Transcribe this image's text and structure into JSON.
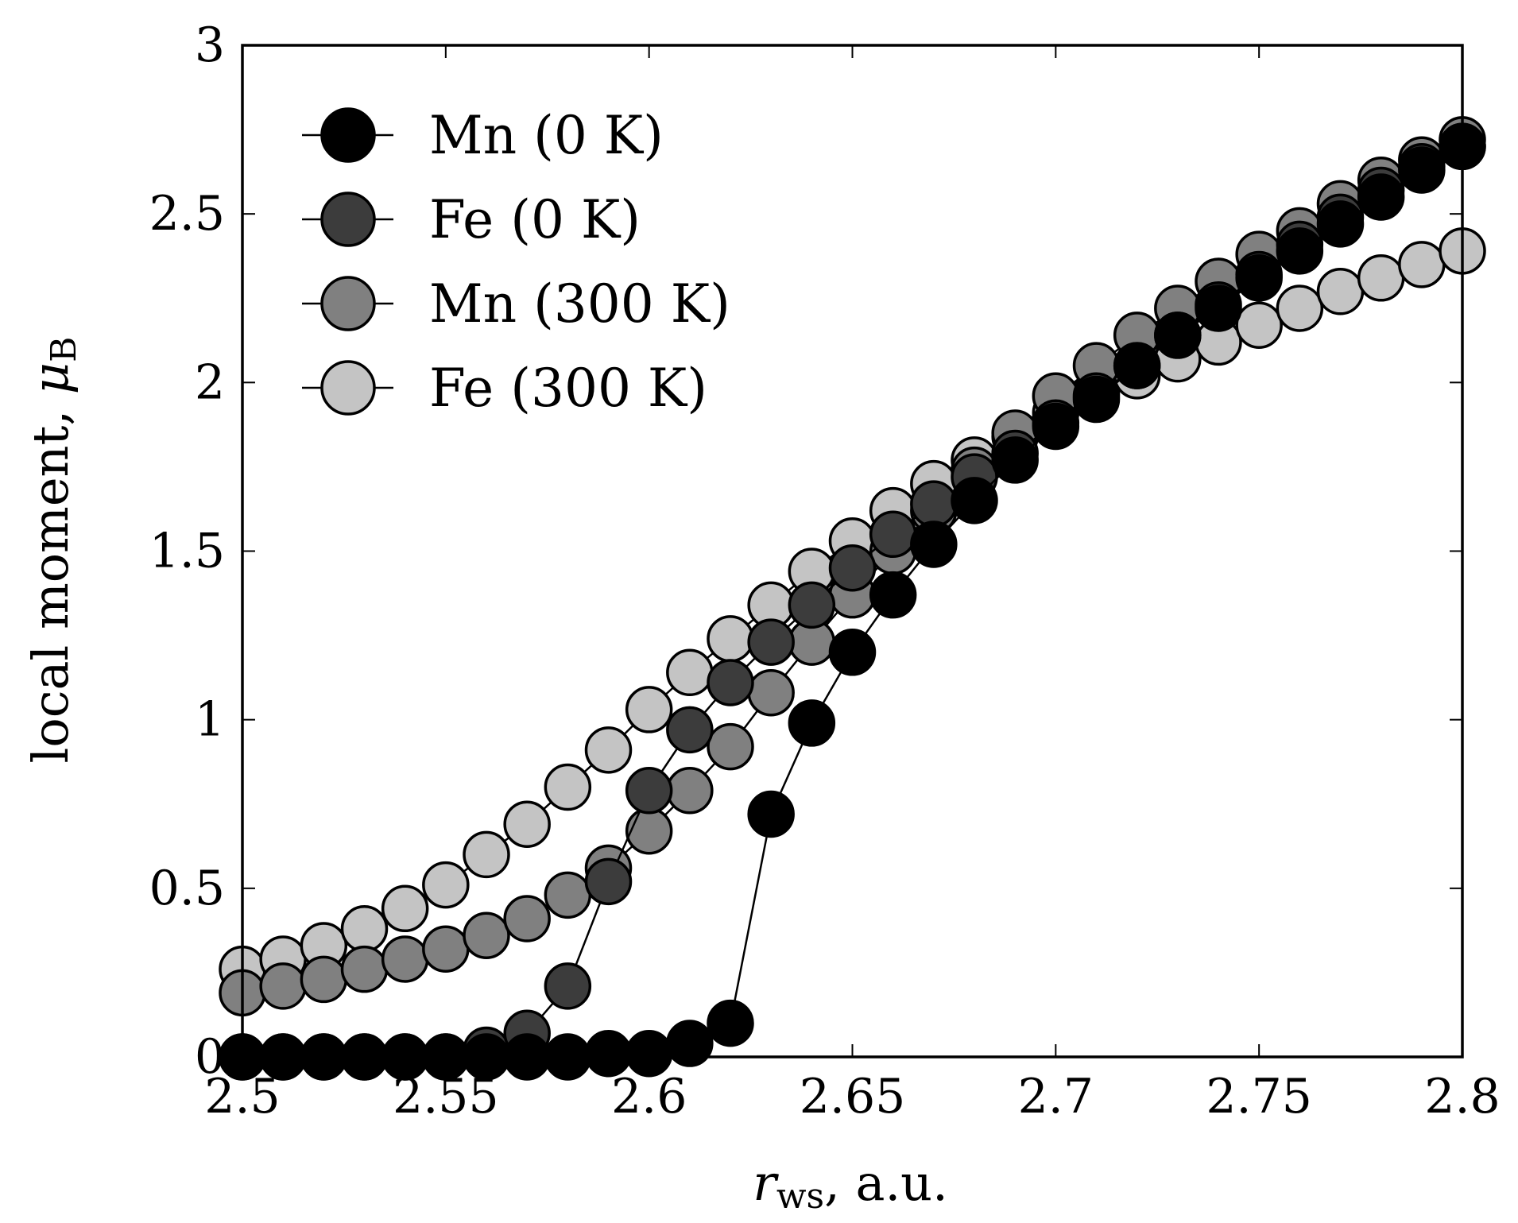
{
  "chart_data": {
    "type": "line",
    "title": "",
    "xlabel": {
      "main": "r",
      "sub": "ws",
      "suffix": ", a.u."
    },
    "ylabel": {
      "main": "local moment, ",
      "mu": "μ",
      "sub": "B"
    },
    "xlim": [
      2.5,
      2.8
    ],
    "ylim": [
      0,
      3
    ],
    "xticks": [
      2.5,
      2.55,
      2.6,
      2.65,
      2.7,
      2.75,
      2.8
    ],
    "xtick_labels": [
      "2.5",
      "2.55",
      "2.6",
      "2.65",
      "2.7",
      "2.75",
      "2.8"
    ],
    "yticks": [
      0,
      0.5,
      1,
      1.5,
      2,
      2.5,
      3
    ],
    "ytick_labels": [
      "0",
      "0.5",
      "1",
      "1.5",
      "2",
      "2.5",
      "3"
    ],
    "grid": false,
    "legend_position": "top-left",
    "x": [
      2.5,
      2.51,
      2.52,
      2.53,
      2.54,
      2.55,
      2.56,
      2.57,
      2.58,
      2.59,
      2.6,
      2.61,
      2.62,
      2.63,
      2.64,
      2.65,
      2.66,
      2.67,
      2.68,
      2.69,
      2.7,
      2.71,
      2.72,
      2.73,
      2.74,
      2.75,
      2.76,
      2.77,
      2.78,
      2.79,
      2.8
    ],
    "series": [
      {
        "name": "Mn (0 K)",
        "color": "#000000",
        "values": [
          0,
          0,
          0,
          0,
          0,
          0,
          0,
          0,
          0,
          0.01,
          0.01,
          0.04,
          0.1,
          0.72,
          0.99,
          1.2,
          1.37,
          1.52,
          1.65,
          1.77,
          1.87,
          1.95,
          2.05,
          2.14,
          2.22,
          2.31,
          2.39,
          2.47,
          2.55,
          2.63,
          2.7
        ]
      },
      {
        "name": "Fe (0 K)",
        "color": "#3c3c3c",
        "values": [
          0,
          0,
          0,
          0,
          0,
          0,
          0.02,
          0.07,
          0.21,
          0.52,
          0.79,
          0.97,
          1.11,
          1.23,
          1.34,
          1.45,
          1.55,
          1.64,
          1.72,
          1.79,
          1.88,
          1.96,
          2.05,
          2.14,
          2.23,
          2.32,
          2.41,
          2.49,
          2.57,
          2.64,
          2.7
        ]
      },
      {
        "name": "Mn (300 K)",
        "color": "#808080",
        "values": [
          0.19,
          0.21,
          0.23,
          0.26,
          0.29,
          0.32,
          0.36,
          0.41,
          0.48,
          0.56,
          0.67,
          0.79,
          0.92,
          1.08,
          1.23,
          1.37,
          1.5,
          1.62,
          1.74,
          1.85,
          1.96,
          2.05,
          2.14,
          2.22,
          2.3,
          2.38,
          2.45,
          2.53,
          2.6,
          2.66,
          2.72
        ]
      },
      {
        "name": "Fe (300 K)",
        "color": "#c4c4c4",
        "values": [
          0.26,
          0.29,
          0.33,
          0.38,
          0.44,
          0.51,
          0.6,
          0.69,
          0.8,
          0.91,
          1.03,
          1.14,
          1.24,
          1.34,
          1.44,
          1.53,
          1.62,
          1.7,
          1.77,
          1.84,
          1.91,
          1.97,
          2.02,
          2.07,
          2.12,
          2.17,
          2.22,
          2.27,
          2.31,
          2.35,
          2.39
        ]
      }
    ]
  }
}
